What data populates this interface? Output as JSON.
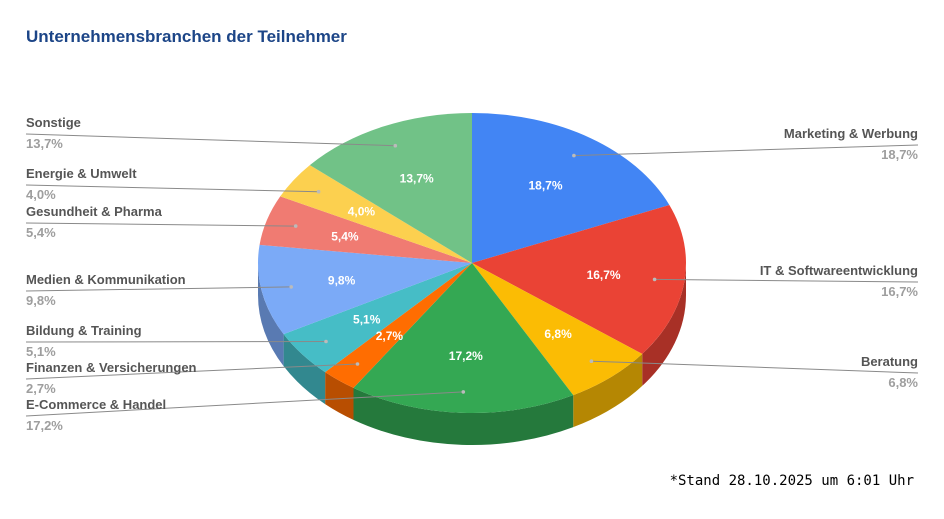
{
  "chart_data": {
    "type": "pie",
    "title": "Unternehmensbranchen der Teilnehmer",
    "categories": [
      "Marketing & Werbung",
      "IT & Softwareentwicklung",
      "Beratung",
      "E-Commerce & Handel",
      "Finanzen & Versicherungen",
      "Bildung & Training",
      "Medien & Kommunikation",
      "Gesundheit & Pharma",
      "Energie & Umwelt",
      "Sonstige"
    ],
    "values": [
      18.7,
      16.7,
      6.8,
      17.2,
      2.7,
      5.1,
      9.8,
      5.4,
      4.0,
      13.7
    ],
    "labels": [
      "18,7%",
      "16,7%",
      "6,8%",
      "17,2%",
      "2,7%",
      "5,1%",
      "9,8%",
      "5,4%",
      "4,0%",
      "13,7%"
    ],
    "colors": [
      "#4285f4",
      "#ea4335",
      "#fbbc04",
      "#34a853",
      "#ff6d01",
      "#46bdc6",
      "#7baaf7",
      "#f07b72",
      "#fcd04f",
      "#71c287"
    ],
    "legend": "labels-outside"
  },
  "footnote": "*Stand 28.10.2025 um 6:01 Uhr"
}
